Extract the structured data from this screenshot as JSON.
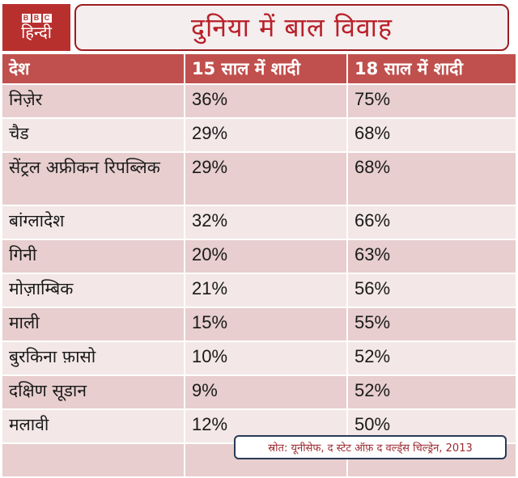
{
  "logo": {
    "bbc_letters": [
      "B",
      "B",
      "C"
    ],
    "subtitle": "हिन्दी"
  },
  "title": "दुनिया में बाल विवाह",
  "table": {
    "headers": [
      "देश",
      "15 साल में शादी",
      "18 साल में शादी"
    ],
    "rows": [
      {
        "country": "निज़ेर",
        "by15": "36%",
        "by18": "75%"
      },
      {
        "country": "चैड",
        "by15": "29%",
        "by18": "68%"
      },
      {
        "country": "सेंट्रल अफ्रीकन रिपब्लिक",
        "by15": "29%",
        "by18": "68%"
      },
      {
        "country": "बांग्लादेश",
        "by15": "32%",
        "by18": "66%"
      },
      {
        "country": "गिनी",
        "by15": "20%",
        "by18": "63%"
      },
      {
        "country": "मोज़ाम्बिक",
        "by15": "21%",
        "by18": "56%"
      },
      {
        "country": "माली",
        "by15": "15%",
        "by18": "55%"
      },
      {
        "country": "बुरकिना फ़ासो",
        "by15": "10%",
        "by18": "52%"
      },
      {
        "country": "दक्षिण सूडान",
        "by15": "9%",
        "by18": "52%"
      },
      {
        "country": "मलावी",
        "by15": "12%",
        "by18": "50%"
      }
    ]
  },
  "source": "स्रोत: यूनीसेफ, द स्टेट ऑफ़ द वर्ल्ड्स चिल्ड्रेन, 2013",
  "colors": {
    "brand_red": "#b8302e",
    "header_bg": "#c0504d",
    "row_dark": "#e8cece",
    "row_light": "#f3e7e7",
    "title_text": "#b8202a"
  }
}
